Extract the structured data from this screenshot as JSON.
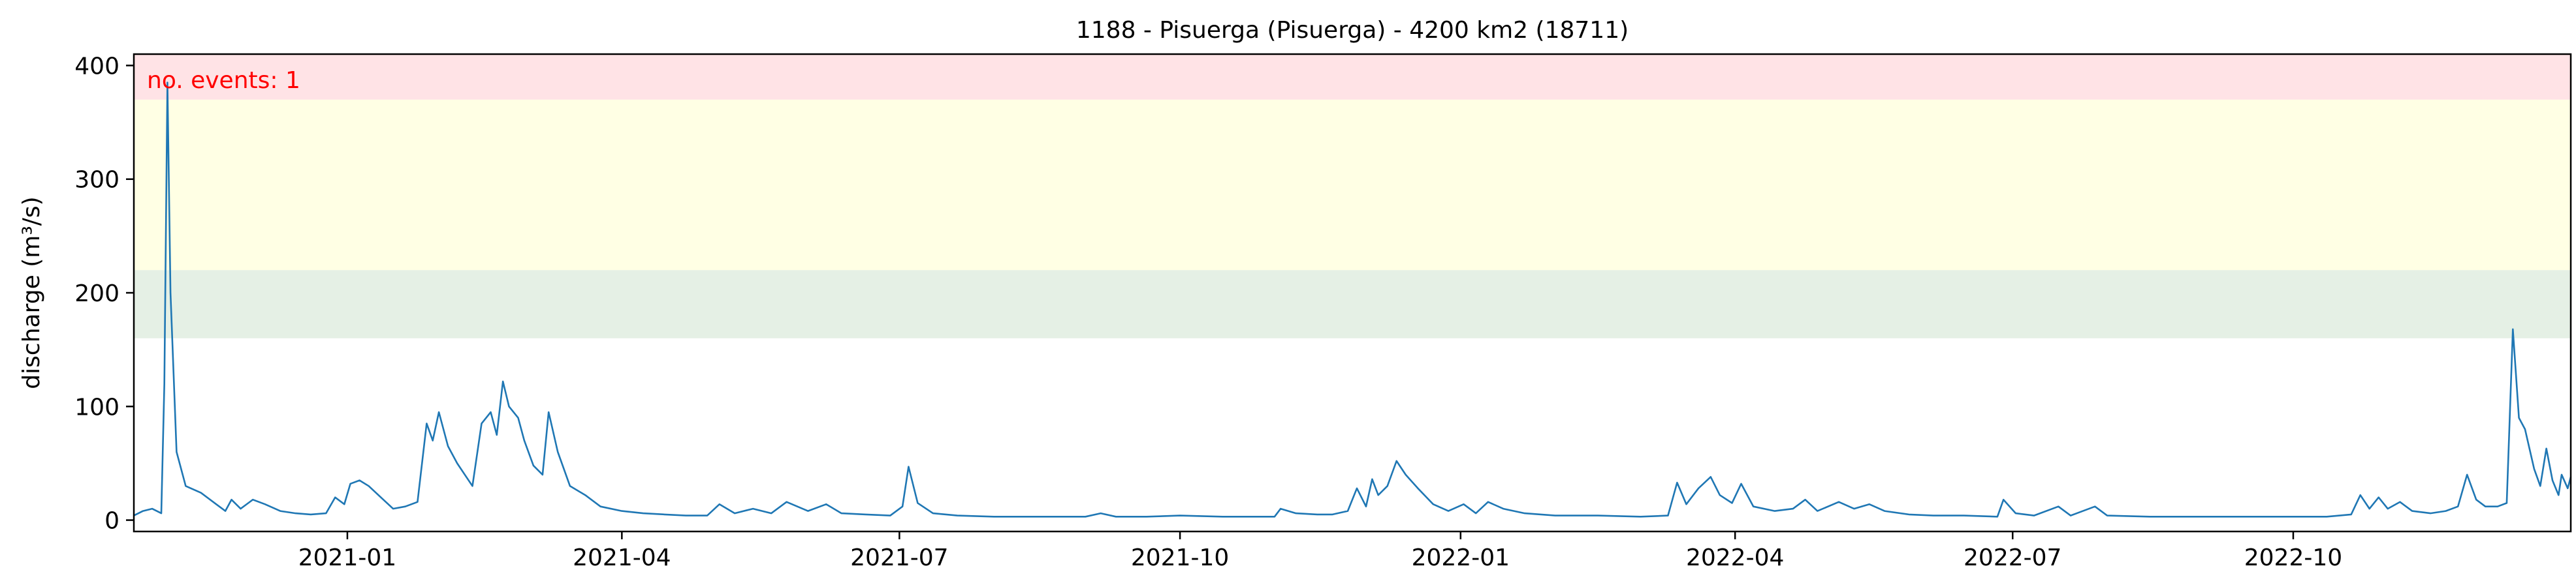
{
  "chart_data": {
    "type": "line",
    "title": "1188 - Pisuerga (Pisuerga) - 4200 km2 (18711)",
    "xlabel": "",
    "ylabel": "discharge (m³/s)",
    "xlim": [
      "2020-10-23",
      "2022-12-31"
    ],
    "ylim": [
      -10,
      410
    ],
    "y_ticks": [
      0,
      100,
      200,
      300,
      400
    ],
    "x_ticks": [
      {
        "date": "2021-01-01",
        "label": "2021-01"
      },
      {
        "date": "2021-04-01",
        "label": "2021-04"
      },
      {
        "date": "2021-07-01",
        "label": "2021-07"
      },
      {
        "date": "2021-10-01",
        "label": "2021-10"
      },
      {
        "date": "2022-01-01",
        "label": "2022-01"
      },
      {
        "date": "2022-04-01",
        "label": "2022-04"
      },
      {
        "date": "2022-07-01",
        "label": "2022-07"
      },
      {
        "date": "2022-10-01",
        "label": "2022-10"
      }
    ],
    "grid": false,
    "threshold_bands": [
      {
        "from": 160,
        "to": 220,
        "color": "#e5f0e5"
      },
      {
        "from": 220,
        "to": 370,
        "color": "#ffffe4"
      },
      {
        "from": 370,
        "to": 410,
        "color": "#ffe3e6"
      }
    ],
    "annotation": {
      "text": "no. events: 1",
      "color": "#ff0000"
    },
    "series": [
      {
        "color": "#1f77b4",
        "points": [
          [
            "2020-10-23",
            4
          ],
          [
            "2020-10-26",
            8
          ],
          [
            "2020-10-29",
            10
          ],
          [
            "2020-11-01",
            6
          ],
          [
            "2020-11-02",
            120
          ],
          [
            "2020-11-03",
            385
          ],
          [
            "2020-11-04",
            200
          ],
          [
            "2020-11-06",
            60
          ],
          [
            "2020-11-09",
            30
          ],
          [
            "2020-11-14",
            24
          ],
          [
            "2020-11-19",
            14
          ],
          [
            "2020-11-22",
            8
          ],
          [
            "2020-11-24",
            18
          ],
          [
            "2020-11-27",
            10
          ],
          [
            "2020-12-01",
            18
          ],
          [
            "2020-12-05",
            14
          ],
          [
            "2020-12-10",
            8
          ],
          [
            "2020-12-15",
            6
          ],
          [
            "2020-12-20",
            5
          ],
          [
            "2020-12-25",
            6
          ],
          [
            "2020-12-28",
            20
          ],
          [
            "2020-12-31",
            14
          ],
          [
            "2021-01-02",
            32
          ],
          [
            "2021-01-05",
            35
          ],
          [
            "2021-01-08",
            30
          ],
          [
            "2021-01-12",
            20
          ],
          [
            "2021-01-16",
            10
          ],
          [
            "2021-01-20",
            12
          ],
          [
            "2021-01-24",
            16
          ],
          [
            "2021-01-27",
            85
          ],
          [
            "2021-01-29",
            70
          ],
          [
            "2021-01-31",
            95
          ],
          [
            "2021-02-03",
            65
          ],
          [
            "2021-02-06",
            50
          ],
          [
            "2021-02-09",
            38
          ],
          [
            "2021-02-11",
            30
          ],
          [
            "2021-02-14",
            85
          ],
          [
            "2021-02-17",
            95
          ],
          [
            "2021-02-19",
            75
          ],
          [
            "2021-02-21",
            122
          ],
          [
            "2021-02-23",
            100
          ],
          [
            "2021-02-26",
            90
          ],
          [
            "2021-02-28",
            70
          ],
          [
            "2021-03-03",
            48
          ],
          [
            "2021-03-06",
            40
          ],
          [
            "2021-03-08",
            95
          ],
          [
            "2021-03-11",
            60
          ],
          [
            "2021-03-15",
            30
          ],
          [
            "2021-03-20",
            22
          ],
          [
            "2021-03-25",
            12
          ],
          [
            "2021-04-01",
            8
          ],
          [
            "2021-04-08",
            6
          ],
          [
            "2021-04-15",
            5
          ],
          [
            "2021-04-22",
            4
          ],
          [
            "2021-04-29",
            4
          ],
          [
            "2021-05-03",
            14
          ],
          [
            "2021-05-08",
            6
          ],
          [
            "2021-05-14",
            10
          ],
          [
            "2021-05-20",
            6
          ],
          [
            "2021-05-25",
            16
          ],
          [
            "2021-06-01",
            8
          ],
          [
            "2021-06-07",
            14
          ],
          [
            "2021-06-12",
            6
          ],
          [
            "2021-06-20",
            5
          ],
          [
            "2021-06-28",
            4
          ],
          [
            "2021-07-02",
            12
          ],
          [
            "2021-07-04",
            47
          ],
          [
            "2021-07-07",
            15
          ],
          [
            "2021-07-12",
            6
          ],
          [
            "2021-07-20",
            4
          ],
          [
            "2021-08-01",
            3
          ],
          [
            "2021-08-15",
            3
          ],
          [
            "2021-08-31",
            3
          ],
          [
            "2021-09-05",
            6
          ],
          [
            "2021-09-10",
            3
          ],
          [
            "2021-09-20",
            3
          ],
          [
            "2021-10-01",
            4
          ],
          [
            "2021-10-15",
            3
          ],
          [
            "2021-11-01",
            3
          ],
          [
            "2021-11-03",
            10
          ],
          [
            "2021-11-08",
            6
          ],
          [
            "2021-11-15",
            5
          ],
          [
            "2021-11-20",
            5
          ],
          [
            "2021-11-25",
            8
          ],
          [
            "2021-11-28",
            28
          ],
          [
            "2021-12-01",
            12
          ],
          [
            "2021-12-03",
            36
          ],
          [
            "2021-12-05",
            22
          ],
          [
            "2021-12-08",
            30
          ],
          [
            "2021-12-11",
            52
          ],
          [
            "2021-12-14",
            40
          ],
          [
            "2021-12-18",
            28
          ],
          [
            "2021-12-23",
            14
          ],
          [
            "2021-12-28",
            8
          ],
          [
            "2022-01-02",
            14
          ],
          [
            "2022-01-06",
            6
          ],
          [
            "2022-01-10",
            16
          ],
          [
            "2022-01-15",
            10
          ],
          [
            "2022-01-22",
            6
          ],
          [
            "2022-02-01",
            4
          ],
          [
            "2022-02-15",
            4
          ],
          [
            "2022-03-01",
            3
          ],
          [
            "2022-03-10",
            4
          ],
          [
            "2022-03-13",
            33
          ],
          [
            "2022-03-16",
            14
          ],
          [
            "2022-03-20",
            28
          ],
          [
            "2022-03-24",
            38
          ],
          [
            "2022-03-27",
            22
          ],
          [
            "2022-03-31",
            15
          ],
          [
            "2022-04-03",
            32
          ],
          [
            "2022-04-07",
            12
          ],
          [
            "2022-04-14",
            8
          ],
          [
            "2022-04-20",
            10
          ],
          [
            "2022-04-24",
            18
          ],
          [
            "2022-04-28",
            8
          ],
          [
            "2022-05-05",
            16
          ],
          [
            "2022-05-10",
            10
          ],
          [
            "2022-05-15",
            14
          ],
          [
            "2022-05-20",
            8
          ],
          [
            "2022-05-28",
            5
          ],
          [
            "2022-06-05",
            4
          ],
          [
            "2022-06-15",
            4
          ],
          [
            "2022-06-26",
            3
          ],
          [
            "2022-06-28",
            18
          ],
          [
            "2022-07-02",
            6
          ],
          [
            "2022-07-08",
            4
          ],
          [
            "2022-07-16",
            12
          ],
          [
            "2022-07-20",
            4
          ],
          [
            "2022-07-28",
            12
          ],
          [
            "2022-08-01",
            4
          ],
          [
            "2022-08-15",
            3
          ],
          [
            "2022-09-01",
            3
          ],
          [
            "2022-09-15",
            3
          ],
          [
            "2022-10-01",
            3
          ],
          [
            "2022-10-12",
            3
          ],
          [
            "2022-10-20",
            5
          ],
          [
            "2022-10-23",
            22
          ],
          [
            "2022-10-26",
            10
          ],
          [
            "2022-10-29",
            20
          ],
          [
            "2022-11-01",
            10
          ],
          [
            "2022-11-05",
            16
          ],
          [
            "2022-11-09",
            8
          ],
          [
            "2022-11-15",
            6
          ],
          [
            "2022-11-20",
            8
          ],
          [
            "2022-11-24",
            12
          ],
          [
            "2022-11-27",
            40
          ],
          [
            "2022-11-30",
            18
          ],
          [
            "2022-12-03",
            12
          ],
          [
            "2022-12-07",
            12
          ],
          [
            "2022-12-10",
            15
          ],
          [
            "2022-12-12",
            168
          ],
          [
            "2022-12-14",
            90
          ],
          [
            "2022-12-16",
            80
          ],
          [
            "2022-12-19",
            45
          ],
          [
            "2022-12-21",
            30
          ],
          [
            "2022-12-23",
            63
          ],
          [
            "2022-12-25",
            35
          ],
          [
            "2022-12-27",
            22
          ],
          [
            "2022-12-28",
            40
          ],
          [
            "2022-12-30",
            28
          ],
          [
            "2022-12-31",
            38
          ]
        ]
      }
    ]
  }
}
